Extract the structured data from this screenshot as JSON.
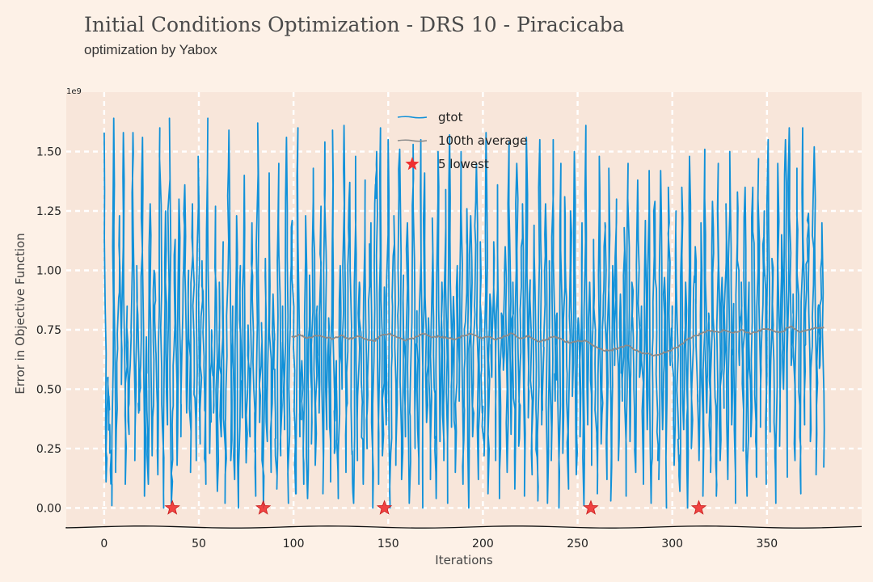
{
  "chart_data": {
    "type": "line",
    "title": "Initial Conditions Optimization - DRS 10 - Piracicaba",
    "subtitle": "optimization by Yabox",
    "xlabel": "Iterations",
    "ylabel": "Error in Objective Function",
    "y_offset_label": "1e9",
    "xlim": [
      -20,
      400
    ],
    "ylim": [
      -0.08,
      1.75
    ],
    "xticks": [
      "0",
      "50",
      "100",
      "150",
      "200",
      "250",
      "300",
      "350"
    ],
    "yticks": [
      "0.00",
      "0.25",
      "0.50",
      "0.75",
      "1.00",
      "1.25",
      "1.50"
    ],
    "grid": true,
    "legend_position": "top-center",
    "series": [
      {
        "name": "gtot",
        "color": "#1191d9",
        "x_range": [
          0,
          380
        ],
        "values": [
          1.58,
          0.11,
          0.55,
          0.3,
          0.01,
          1.64,
          0.15,
          0.67,
          1.23,
          0.52,
          1.58,
          0.1,
          0.85,
          0.31,
          0.74,
          1.58,
          0.2,
          1.02,
          0.4,
          0.6,
          1.56,
          0.05,
          0.72,
          0.1,
          1.28,
          0.22,
          1.0,
          0.65,
          0.14,
          1.6,
          0.58,
          0.0,
          1.25,
          0.35,
          1.64,
          0.02,
          0.43,
          1.13,
          0.18,
          1.3,
          0.3,
          0.82,
          1.36,
          0.4,
          1.0,
          0.15,
          1.28,
          0.55,
          0.2,
          1.48,
          0.27,
          1.04,
          0.6,
          0.1,
          1.64,
          0.23,
          0.75,
          0.4,
          1.27,
          0.07,
          0.95,
          0.3,
          1.12,
          0.02,
          0.64,
          1.59,
          0.2,
          0.85,
          0.12,
          1.23,
          0.0,
          1.02,
          0.38,
          1.4,
          0.19,
          0.77,
          0.3,
          1.2,
          0.5,
          0.05,
          1.62,
          0.36,
          0.78,
          0.0,
          1.05,
          0.28,
          1.41,
          0.15,
          0.9,
          0.47,
          0.08,
          1.45,
          0.22,
          0.85,
          0.33,
          1.56,
          0.02,
          0.76,
          1.21,
          0.41,
          0.06,
          1.6,
          0.3,
          0.62,
          0.1,
          1.23,
          0.04,
          0.98,
          0.27,
          1.43,
          0.18,
          0.85,
          0.4,
          1.27,
          0.06,
          1.54,
          0.33,
          0.8,
          0.11,
          1.59,
          0.23,
          0.62,
          0.04,
          1.02,
          0.5,
          1.61,
          0.15,
          0.83,
          1.37,
          0.28,
          0.02,
          1.48,
          0.2,
          0.95,
          0.53,
          0.1,
          1.38,
          0.25,
          0.77,
          1.2,
          0.0,
          1.28,
          1.5,
          0.1,
          1.6,
          0.22,
          0.93,
          0.35,
          1.55,
          0.0,
          0.64,
          1.23,
          0.18,
          0.81,
          1.51,
          0.12,
          0.98,
          0.3,
          1.2,
          0.02,
          0.67,
          1.53,
          0.25,
          0.83,
          0.1,
          1.55,
          0.0,
          1.41,
          0.36,
          0.8,
          0.12,
          1.22,
          0.5,
          0.04,
          1.5,
          0.28,
          0.95,
          0.2,
          1.34,
          0.02,
          1.57,
          0.34,
          0.89,
          0.15,
          1.02,
          0.45,
          1.5,
          0.1,
          0.63,
          1.26,
          0.0,
          1.23,
          0.3,
          0.85,
          1.45,
          0.12,
          1.12,
          0.4,
          0.22,
          1.58,
          0.06,
          0.9,
          0.55,
          1.12,
          0.2,
          1.36,
          0.04,
          0.82,
          0.58,
          1.1,
          0.15,
          1.54,
          0.31,
          0.95,
          0.08,
          1.45,
          0.26,
          0.74,
          1.28,
          0.05,
          1.56,
          0.38,
          0.96,
          0.14,
          1.19,
          0.42,
          0.03,
          1.55,
          0.35,
          0.68,
          1.28,
          0.02,
          1.04,
          0.2,
          1.55,
          0.45,
          0.82,
          0.0,
          1.45,
          0.23,
          1.31,
          0.6,
          0.08,
          1.25,
          0.47,
          1.5,
          0.14,
          0.8,
          0.3,
          1.2,
          0.01,
          1.61,
          0.35,
          0.95,
          0.18,
          1.13,
          0.5,
          0.06,
          1.48,
          0.27,
          0.81,
          1.2,
          0.12,
          1.43,
          0.03,
          1.02,
          0.6,
          1.3,
          0.2,
          0.9,
          0.45,
          1.18,
          0.05,
          1.45,
          0.28,
          0.95,
          0.58,
          0.15,
          1.38,
          0.55,
          0.85,
          0.1,
          1.21,
          0.33,
          1.42,
          0.02,
          0.72,
          1.29,
          0.48,
          0.12,
          1.42,
          0.33,
          0.97,
          0.0,
          1.35,
          0.6,
          0.85,
          0.18,
          1.25,
          0.4,
          0.07,
          1.35,
          0.33,
          0.95,
          0.0,
          1.48,
          0.25,
          0.83,
          1.1,
          0.55,
          0.2,
          1.2,
          0.05,
          1.51,
          0.4,
          0.82,
          0.15,
          1.29,
          0.6,
          0.05,
          1.45,
          0.2,
          0.97,
          0.42,
          1.28,
          0.12,
          1.5,
          0.35,
          0.86,
          0.02,
          1.33,
          0.6,
          0.95,
          0.24,
          1.35,
          0.05,
          0.95,
          0.3,
          1.35,
          0.5,
          0.13,
          1.47,
          0.34,
          0.8,
          1.25,
          0.1,
          1.55,
          0.32,
          1.05,
          0.62,
          0.02,
          1.45,
          0.26,
          1.15,
          0.5,
          1.55,
          0.13,
          1.6,
          0.6,
          0.9,
          0.2,
          1.43,
          0.55,
          0.06,
          1.6,
          0.35,
          0.92,
          1.24,
          0.28,
          0.8,
          1.52,
          0.14,
          0.84,
          0.6,
          1.2,
          0.17
        ],
        "noise_amplitude": 0.12,
        "noise_seed": 7
      },
      {
        "name": "100th average",
        "color": "#8a8a8a",
        "x_range": [
          99,
          380
        ],
        "values": [
          0.719,
          0.73,
          0.716,
          0.725,
          0.72,
          0.711,
          0.727,
          0.71,
          0.724,
          0.712,
          0.702,
          0.728,
          0.735,
          0.716,
          0.704,
          0.716,
          0.735,
          0.72,
          0.722,
          0.715,
          0.71,
          0.724,
          0.732,
          0.715,
          0.721,
          0.708,
          0.724,
          0.734,
          0.713,
          0.725,
          0.701,
          0.707,
          0.721,
          0.71,
          0.694,
          0.705,
          0.701,
          0.68,
          0.664,
          0.664,
          0.673,
          0.684,
          0.664,
          0.652,
          0.643,
          0.648,
          0.662,
          0.674,
          0.702,
          0.721,
          0.732,
          0.748,
          0.742,
          0.748,
          0.737,
          0.75,
          0.732,
          0.745,
          0.752,
          0.744,
          0.742,
          0.765,
          0.74,
          0.749,
          0.76,
          0.757
        ],
        "noise_amplitude": 0.008,
        "noise_seed": 3
      },
      {
        "name": "5 lowest",
        "color": "#ee3030",
        "marker": "star",
        "x": [
          36,
          84,
          148,
          257,
          314
        ],
        "values": [
          0.0,
          0.0,
          0.0,
          0.0,
          0.0
        ]
      }
    ]
  }
}
